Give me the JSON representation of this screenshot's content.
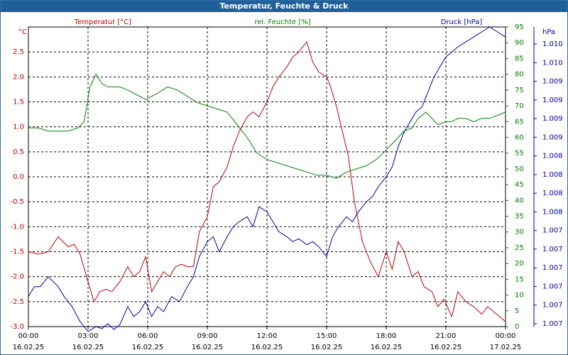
{
  "window": {
    "title": "Temperatur, Feuchte & Druck"
  },
  "chart_data": {
    "type": "line",
    "title": "Temperatur, Feuchte & Druck",
    "grid": true,
    "colors": {
      "temperature": "#c00000",
      "humidity": "#008000",
      "pressure": "#0000a0"
    },
    "x_ticks": [
      {
        "time": "00:00",
        "date": "16.02.25"
      },
      {
        "time": "03:00",
        "date": "16.02.25"
      },
      {
        "time": "06:00",
        "date": "16.02.25"
      },
      {
        "time": "09:00",
        "date": "16.02.25"
      },
      {
        "time": "12:00",
        "date": "16.02.25"
      },
      {
        "time": "15:00",
        "date": "16.02.25"
      },
      {
        "time": "18:00",
        "date": "16.02.25"
      },
      {
        "time": "21:00",
        "date": "16.02.25"
      },
      {
        "time": "00:00",
        "date": "17.02.25"
      }
    ],
    "x_range_hours": [
      0,
      24
    ],
    "axes": {
      "temperature": {
        "label": "Temperatur [°C]",
        "unit": "°C",
        "range": [
          -3.0,
          3.0
        ],
        "ticks": [
          "2.5",
          "2.0",
          "1.5",
          "1.0",
          "0.5",
          "0.0",
          "-0.5",
          "-1.0",
          "-1.5",
          "-2.0",
          "-2.5",
          "-3.0"
        ]
      },
      "humidity": {
        "label": "rel. Feuchte [%]",
        "unit": "%",
        "range": [
          0,
          95
        ],
        "ticks": [
          "95",
          "90",
          "85",
          "80",
          "75",
          "70",
          "65",
          "60",
          "55",
          "50",
          "45",
          "40",
          "35",
          "30",
          "25",
          "20",
          "15",
          "10",
          "5",
          "0"
        ]
      },
      "pressure": {
        "label": "Druck [hPa]",
        "unit": "hPa",
        "range": [
          1007,
          1010
        ],
        "ticks": [
          "1.010",
          "1.010",
          "1.009",
          "1.009",
          "1.009",
          "1.009",
          "1.008",
          "1.008",
          "1.008",
          "1.008",
          "1.007",
          "1.007",
          "1.007",
          "1.007",
          "1.007",
          "1.007"
        ]
      }
    },
    "series": [
      {
        "name": "Temperatur [°C]",
        "axis": "temperature",
        "color": "#c00000",
        "x": [
          0,
          0.5,
          1,
          1.5,
          2,
          2.3,
          2.6,
          3,
          3.3,
          3.6,
          3.9,
          4.2,
          4.6,
          5,
          5.3,
          5.6,
          5.9,
          6.2,
          6.5,
          6.8,
          7.1,
          7.4,
          7.7,
          8,
          8.3,
          8.6,
          9,
          9.3,
          9.6,
          10,
          10.3,
          10.6,
          11,
          11.3,
          11.6,
          12,
          12.3,
          12.6,
          13,
          13.3,
          13.6,
          14,
          14.3,
          14.6,
          15,
          15.2,
          15.5,
          15.8,
          16.1,
          16.4,
          16.8,
          17.2,
          17.6,
          18,
          18.3,
          18.6,
          18.9,
          19.3,
          19.6,
          19.9,
          20.3,
          20.6,
          20.9,
          21.3,
          21.6,
          22,
          22.4,
          22.8,
          23.1,
          23.4,
          23.7,
          24
        ],
        "y": [
          -1.5,
          -1.55,
          -1.5,
          -1.2,
          -1.4,
          -1.35,
          -1.55,
          -2.1,
          -2.5,
          -2.3,
          -2.25,
          -2.3,
          -2.1,
          -1.8,
          -2.0,
          -1.9,
          -1.6,
          -2.3,
          -2.1,
          -1.9,
          -2.0,
          -1.8,
          -1.75,
          -1.8,
          -1.8,
          -1.1,
          -0.8,
          -0.2,
          -0.1,
          0.2,
          0.6,
          0.9,
          1.2,
          1.3,
          1.2,
          1.5,
          1.8,
          2.0,
          2.2,
          2.4,
          2.5,
          2.7,
          2.3,
          2.1,
          2.0,
          1.8,
          1.4,
          0.9,
          0.4,
          -0.5,
          -1.3,
          -1.7,
          -2.0,
          -1.5,
          -1.85,
          -1.3,
          -1.5,
          -2.0,
          -1.9,
          -2.2,
          -2.3,
          -2.6,
          -2.45,
          -2.8,
          -2.3,
          -2.5,
          -2.6,
          -2.75,
          -2.6,
          -2.7,
          -2.8,
          -2.9
        ]
      },
      {
        "name": "rel. Feuchte [%]",
        "axis": "humidity",
        "color": "#008000",
        "x": [
          0,
          0.5,
          1,
          1.5,
          2,
          2.5,
          2.8,
          3.1,
          3.4,
          3.7,
          4,
          4.3,
          4.6,
          5,
          5.3,
          5.6,
          5.9,
          6.2,
          6.5,
          7,
          7.5,
          8,
          8.5,
          9,
          9.5,
          10,
          10.5,
          11,
          11.5,
          12,
          12.5,
          13,
          13.5,
          14,
          14.5,
          15,
          15.5,
          16,
          16.5,
          17,
          17.5,
          18,
          18.3,
          18.6,
          18.9,
          19.3,
          19.6,
          20,
          20.3,
          20.6,
          21,
          21.3,
          21.6,
          22,
          22.4,
          22.8,
          23.2,
          23.6,
          24
        ],
        "y": [
          63,
          63,
          62,
          62,
          62,
          63,
          65,
          76,
          80,
          77,
          76,
          76,
          76,
          75,
          74,
          73,
          72,
          73,
          74,
          76,
          75,
          73,
          71,
          70,
          69,
          68,
          64,
          60,
          55,
          53,
          52,
          51,
          50,
          49,
          48,
          48,
          47,
          49,
          50,
          51,
          53,
          56,
          58,
          60,
          62,
          63,
          66,
          68,
          66,
          64,
          65,
          65,
          66,
          66,
          65,
          66,
          66,
          67,
          68
        ]
      },
      {
        "name": "Druck [hPa]",
        "axis": "pressure",
        "color": "#0000a0",
        "x": [
          0,
          0.3,
          0.6,
          1,
          1.5,
          1.8,
          2.2,
          2.6,
          3,
          3.4,
          3.7,
          4,
          4.3,
          4.6,
          5,
          5.3,
          5.6,
          5.9,
          6.2,
          6.5,
          6.8,
          7.2,
          7.6,
          8,
          8.3,
          8.6,
          9,
          9.3,
          9.6,
          10,
          10.3,
          10.6,
          11,
          11.3,
          11.6,
          12,
          12.3,
          12.6,
          13,
          13.3,
          13.6,
          14,
          14.3,
          14.6,
          15,
          15.3,
          15.6,
          16,
          16.3,
          16.6,
          17,
          17.3,
          17.6,
          18,
          18.3,
          18.6,
          18.9,
          19.2,
          19.5,
          19.8,
          20.1,
          20.4,
          20.7,
          21,
          21.3,
          21.6,
          22,
          22.4,
          22.8,
          23.2,
          23.6,
          24
        ],
        "y": [
          1007.3,
          1007.4,
          1007.4,
          1007.5,
          1007.4,
          1007.3,
          1007.2,
          1007.05,
          1006.95,
          1007.0,
          1006.98,
          1007.03,
          1006.97,
          1007.02,
          1007.2,
          1007.1,
          1007.15,
          1007.25,
          1007.1,
          1007.2,
          1007.15,
          1007.3,
          1007.25,
          1007.4,
          1007.5,
          1007.7,
          1007.85,
          1007.9,
          1007.75,
          1007.9,
          1008.0,
          1008.05,
          1008.1,
          1008.0,
          1008.2,
          1008.15,
          1008.05,
          1007.95,
          1007.9,
          1007.85,
          1007.88,
          1007.82,
          1007.85,
          1007.8,
          1007.7,
          1007.9,
          1008.0,
          1008.1,
          1008.05,
          1008.15,
          1008.25,
          1008.3,
          1008.4,
          1008.5,
          1008.6,
          1008.8,
          1008.95,
          1009.05,
          1009.15,
          1009.2,
          1009.35,
          1009.5,
          1009.6,
          1009.7,
          1009.75,
          1009.8,
          1009.85,
          1009.9,
          1009.95,
          1010.0,
          1009.95,
          1009.9
        ]
      }
    ]
  }
}
